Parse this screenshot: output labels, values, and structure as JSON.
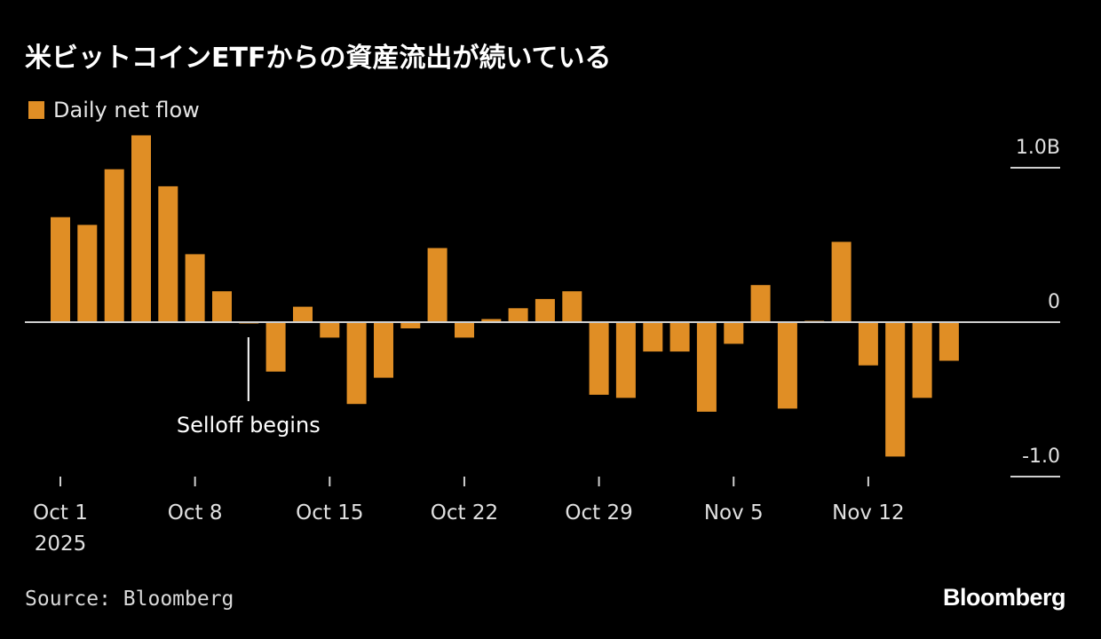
{
  "title": "米ビットコインETFからの資産流出が続いている",
  "legend": {
    "label": "Daily net flow",
    "color": "#e08e25"
  },
  "source": "Source: Bloomberg",
  "brand": "Bloomberg",
  "y_axis": {
    "ticks": [
      {
        "value": 1.0,
        "label": "1.0B"
      },
      {
        "value": 0,
        "label": "0"
      },
      {
        "value": -1.0,
        "label": "-1.0"
      }
    ]
  },
  "x_axis": {
    "ticks": [
      {
        "index": 0,
        "label": "Oct 1",
        "sublabel": "2025"
      },
      {
        "index": 5,
        "label": "Oct 8",
        "sublabel": ""
      },
      {
        "index": 10,
        "label": "Oct 15",
        "sublabel": ""
      },
      {
        "index": 15,
        "label": "Oct 22",
        "sublabel": ""
      },
      {
        "index": 20,
        "label": "Oct 29",
        "sublabel": ""
      },
      {
        "index": 25,
        "label": "Nov 5",
        "sublabel": ""
      },
      {
        "index": 30,
        "label": "Nov 12",
        "sublabel": ""
      }
    ]
  },
  "annotation": {
    "label": "Selloff begins",
    "index": 7
  },
  "chart_data": {
    "type": "bar",
    "title": "米ビットコインETFからの資産流出が続いている",
    "xlabel": "",
    "ylabel": "Daily net flow (USD billions)",
    "ylim": [
      -1.0,
      1.0
    ],
    "grid": false,
    "legend_position": "top-left",
    "annotations": [
      {
        "x": "Oct 10",
        "text": "Selloff begins"
      }
    ],
    "categories": [
      "Oct 1",
      "Oct 2",
      "Oct 3",
      "Oct 6",
      "Oct 7",
      "Oct 8",
      "Oct 9",
      "Oct 10",
      "Oct 13",
      "Oct 14",
      "Oct 15",
      "Oct 16",
      "Oct 17",
      "Oct 20",
      "Oct 21",
      "Oct 22",
      "Oct 23",
      "Oct 24",
      "Oct 27",
      "Oct 28",
      "Oct 29",
      "Oct 30",
      "Oct 31",
      "Nov 3",
      "Nov 4",
      "Nov 5",
      "Nov 6",
      "Nov 7",
      "Nov 10",
      "Nov 11",
      "Nov 12",
      "Nov 13",
      "Nov 14",
      "Nov 17"
    ],
    "series": [
      {
        "name": "Daily net flow",
        "color": "#e08e25",
        "values": [
          0.68,
          0.63,
          0.99,
          1.21,
          0.88,
          0.44,
          0.2,
          -0.005,
          -0.32,
          0.1,
          -0.1,
          -0.53,
          -0.36,
          -0.04,
          0.48,
          -0.1,
          0.02,
          0.09,
          0.15,
          0.2,
          -0.47,
          -0.49,
          -0.19,
          -0.19,
          -0.58,
          -0.14,
          0.24,
          -0.56,
          0.005,
          0.52,
          -0.28,
          -0.87,
          -0.49,
          -0.25
        ]
      }
    ]
  }
}
